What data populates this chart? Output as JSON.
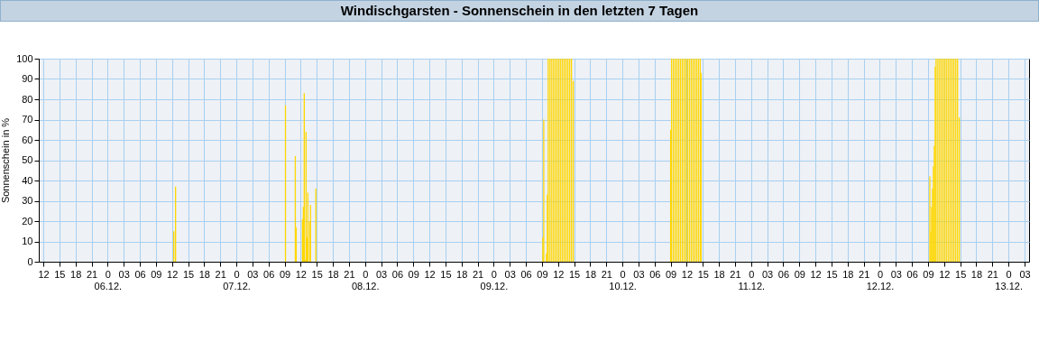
{
  "chart_data": {
    "type": "bar",
    "title": "Windischgarsten - Sonnenschein in den letzten 7 Tagen",
    "ylabel": "Sonnenschein in %",
    "color": "#ffd700",
    "grid": true,
    "xlim": [
      "--12-05T12:00",
      "--12-13T03:00"
    ],
    "ylim": [
      0,
      100
    ],
    "yticks": [
      0,
      10,
      20,
      30,
      40,
      50,
      60,
      70,
      80,
      90,
      100
    ],
    "xticks": [
      {
        "value": "--12-05T12:00",
        "label": "12"
      },
      {
        "value": "--12-05T15:00",
        "label": "15"
      },
      {
        "value": "--12-05T18:00",
        "label": "18"
      },
      {
        "value": "--12-05T21:00",
        "label": "21"
      },
      {
        "value": "--12-06T00:00",
        "label": "0\n06.12."
      },
      {
        "value": "--12-06T03:00",
        "label": "03"
      },
      {
        "value": "--12-06T06:00",
        "label": "06"
      },
      {
        "value": "--12-06T09:00",
        "label": "09"
      },
      {
        "value": "--12-06T12:00",
        "label": "12"
      },
      {
        "value": "--12-06T15:00",
        "label": "15"
      },
      {
        "value": "--12-06T18:00",
        "label": "18"
      },
      {
        "value": "--12-06T21:00",
        "label": "21"
      },
      {
        "value": "--12-07T00:00",
        "label": "0\n07.12."
      },
      {
        "value": "--12-07T03:00",
        "label": "03"
      },
      {
        "value": "--12-07T06:00",
        "label": "06"
      },
      {
        "value": "--12-07T09:00",
        "label": "09"
      },
      {
        "value": "--12-07T12:00",
        "label": "12"
      },
      {
        "value": "--12-07T15:00",
        "label": "15"
      },
      {
        "value": "--12-07T18:00",
        "label": "18"
      },
      {
        "value": "--12-07T21:00",
        "label": "21"
      },
      {
        "value": "--12-08T00:00",
        "label": "0\n08.12."
      },
      {
        "value": "--12-08T03:00",
        "label": "03"
      },
      {
        "value": "--12-08T06:00",
        "label": "06"
      },
      {
        "value": "--12-08T09:00",
        "label": "09"
      },
      {
        "value": "--12-08T12:00",
        "label": "12"
      },
      {
        "value": "--12-08T15:00",
        "label": "15"
      },
      {
        "value": "--12-08T18:00",
        "label": "18"
      },
      {
        "value": "--12-08T21:00",
        "label": "21"
      },
      {
        "value": "--12-09T00:00",
        "label": "0\n09.12."
      },
      {
        "value": "--12-09T03:00",
        "label": "03"
      },
      {
        "value": "--12-09T06:00",
        "label": "06"
      },
      {
        "value": "--12-09T09:00",
        "label": "09"
      },
      {
        "value": "--12-09T12:00",
        "label": "12"
      },
      {
        "value": "--12-09T15:00",
        "label": "15"
      },
      {
        "value": "--12-09T18:00",
        "label": "18"
      },
      {
        "value": "--12-09T21:00",
        "label": "21"
      },
      {
        "value": "--12-10T00:00",
        "label": "0\n10.12."
      },
      {
        "value": "--12-10T03:00",
        "label": "03"
      },
      {
        "value": "--12-10T06:00",
        "label": "06"
      },
      {
        "value": "--12-10T09:00",
        "label": "09"
      },
      {
        "value": "--12-10T12:00",
        "label": "12"
      },
      {
        "value": "--12-10T15:00",
        "label": "15"
      },
      {
        "value": "--12-10T18:00",
        "label": "18"
      },
      {
        "value": "--12-10T21:00",
        "label": "21"
      },
      {
        "value": "--12-11T00:00",
        "label": "0\n11.12."
      },
      {
        "value": "--12-11T03:00",
        "label": "03"
      },
      {
        "value": "--12-11T06:00",
        "label": "06"
      },
      {
        "value": "--12-11T09:00",
        "label": "09"
      },
      {
        "value": "--12-11T12:00",
        "label": "12"
      },
      {
        "value": "--12-11T15:00",
        "label": "15"
      },
      {
        "value": "--12-11T18:00",
        "label": "18"
      },
      {
        "value": "--12-11T21:00",
        "label": "21"
      },
      {
        "value": "--12-12T00:00",
        "label": "0\n12.12."
      },
      {
        "value": "--12-12T03:00",
        "label": "03"
      },
      {
        "value": "--12-12T06:00",
        "label": "06"
      },
      {
        "value": "--12-12T09:00",
        "label": "09"
      },
      {
        "value": "--12-12T12:00",
        "label": "12"
      },
      {
        "value": "--12-12T15:00",
        "label": "15"
      },
      {
        "value": "--12-12T18:00",
        "label": "18"
      },
      {
        "value": "--12-12T21:00",
        "label": "21"
      },
      {
        "value": "--12-13T00:00",
        "label": "0\n13.12."
      },
      {
        "value": "--12-13T03:00",
        "label": "03"
      }
    ],
    "x": [
      "--12-06T12:20",
      "--12-06T12:40",
      "--12-07T09:10",
      "--12-07T11:00",
      "--12-07T11:10",
      "--12-07T12:20",
      "--12-07T12:30",
      "--12-07T12:40",
      "--12-07T12:50",
      "--12-07T13:00",
      "--12-07T13:10",
      "--12-07T13:20",
      "--12-07T13:40",
      "--12-07T13:50",
      "--12-07T14:50",
      "--12-09T09:10",
      "--12-09T09:20",
      "--12-09T09:50",
      "--12-09T10:00",
      "--12-09T10:10",
      "--12-09T10:30",
      "--12-09T10:50",
      "--12-09T11:10",
      "--12-09T11:30",
      "--12-09T11:50",
      "--12-09T12:10",
      "--12-09T12:30",
      "--12-09T12:50",
      "--12-09T13:10",
      "--12-09T13:30",
      "--12-09T13:50",
      "--12-09T14:10",
      "--12-09T14:30",
      "--12-09T14:50",
      "--12-10T09:00",
      "--12-10T09:10",
      "--12-10T09:30",
      "--12-10T09:50",
      "--12-10T10:10",
      "--12-10T10:30",
      "--12-10T10:50",
      "--12-10T11:10",
      "--12-10T11:30",
      "--12-10T11:50",
      "--12-10T12:10",
      "--12-10T12:30",
      "--12-10T12:50",
      "--12-10T13:10",
      "--12-10T13:30",
      "--12-10T13:50",
      "--12-10T14:10",
      "--12-10T14:30",
      "--12-10T14:40",
      "--12-12T09:20",
      "--12-12T09:30",
      "--12-12T09:40",
      "--12-12T09:50",
      "--12-12T10:00",
      "--12-12T10:10",
      "--12-12T10:20",
      "--12-12T10:30",
      "--12-12T10:50",
      "--12-12T11:10",
      "--12-12T11:30",
      "--12-12T11:50",
      "--12-12T12:10",
      "--12-12T12:30",
      "--12-12T12:50",
      "--12-12T13:10",
      "--12-12T13:30",
      "--12-12T13:50",
      "--12-12T14:10",
      "--12-12T14:30",
      "--12-12T14:50"
    ],
    "values": [
      15,
      37,
      77,
      52,
      17,
      21,
      27,
      83,
      1,
      64,
      12,
      34,
      20,
      28,
      36,
      12,
      70,
      4,
      33,
      100,
      100,
      100,
      100,
      100,
      100,
      100,
      100,
      100,
      100,
      100,
      100,
      100,
      100,
      89,
      65,
      100,
      100,
      100,
      100,
      100,
      100,
      100,
      100,
      100,
      100,
      100,
      100,
      100,
      100,
      100,
      100,
      100,
      93,
      42,
      15,
      27,
      36,
      47,
      57,
      96,
      100,
      100,
      100,
      100,
      100,
      100,
      100,
      100,
      100,
      100,
      100,
      100,
      100,
      71
    ]
  }
}
